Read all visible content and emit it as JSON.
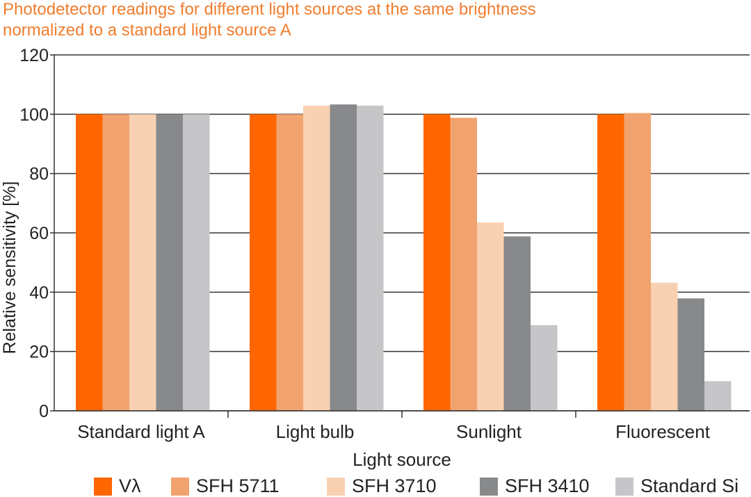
{
  "chart_data": {
    "type": "bar",
    "title": "Photodetector readings for different light sources at the same brightness",
    "subtitle": "normalized to a standard light source A",
    "xlabel": "Light source",
    "ylabel": "Relative sensitivity [%]",
    "ylim": [
      0,
      120
    ],
    "yticks": [
      "0",
      "20",
      "40",
      "60",
      "80",
      "100",
      "120"
    ],
    "grid": true,
    "legend_position": "bottom",
    "categories": [
      "Standard light A",
      "Light bulb",
      "Sunlight",
      "Fluorescent"
    ],
    "series": [
      {
        "name": "Vλ",
        "color": "#ff6600",
        "values": [
          100,
          100,
          100,
          100
        ]
      },
      {
        "name": "SFH 5711",
        "color": "#f1a36f",
        "values": [
          100,
          100,
          98.8,
          100.4
        ]
      },
      {
        "name": "SFH 3710",
        "color": "#f8d1b3",
        "values": [
          100,
          102.9,
          63.5,
          43.2
        ]
      },
      {
        "name": "SFH 3410",
        "color": "#88898b",
        "values": [
          100,
          103.3,
          58.8,
          37.9
        ]
      },
      {
        "name": "Standard Si",
        "color": "#c6c6c8",
        "values": [
          100,
          102.9,
          28.9,
          10.0
        ]
      }
    ]
  }
}
